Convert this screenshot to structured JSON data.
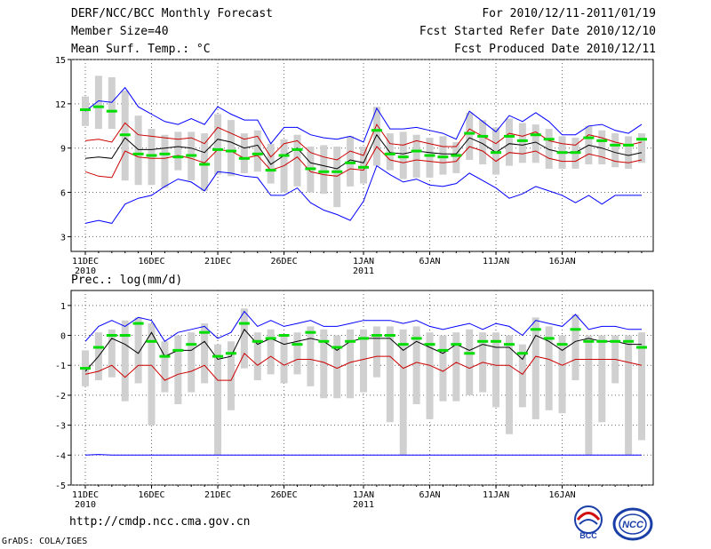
{
  "header": {
    "title": "DERF/NCC/BCC Monthly Forecast",
    "member_size": "Member Size=40",
    "variable": "Mean Surf. Temp.: °C",
    "period": "For 2010/12/11-2011/01/19",
    "started": "Fcst Started Refer Date 2010/12/10",
    "produced": "Fcst Produced Date 2010/12/11"
  },
  "footer": {
    "url": "http://cmdp.ncc.cma.gov.cn",
    "credit": "GrADS: COLA/IGES",
    "logo_bcc": "BCC",
    "logo_ncc": "NCC"
  },
  "colors": {
    "ensemble": "#000000",
    "upper": "#0000ff",
    "lower": "#cc0000",
    "member": "#00dd00",
    "box": "#d0d0d0"
  },
  "chart_data": [
    {
      "type": "line",
      "title": "Mean Surf. Temp.: °C",
      "x_tick_labels": [
        "11DEC\n2010",
        "16DEC",
        "21DEC",
        "26DEC",
        "1JAN\n2011",
        "6JAN",
        "11JAN",
        "16JAN"
      ],
      "x_tick_days": [
        0,
        5,
        10,
        15,
        21,
        26,
        31,
        36
      ],
      "ylim": [
        2,
        15
      ],
      "y_ticks": [
        3,
        6,
        9,
        12,
        15
      ],
      "series": [
        {
          "name": "ensemble_mean",
          "values": [
            8.3,
            8.4,
            8.3,
            9.7,
            8.9,
            8.9,
            9.0,
            9.1,
            9.0,
            8.7,
            9.6,
            9.4,
            9.0,
            9.2,
            7.9,
            8.5,
            9.0,
            8.0,
            7.8,
            7.6,
            8.2,
            8.0,
            9.9,
            8.7,
            8.6,
            8.8,
            8.7,
            8.6,
            8.6,
            9.7,
            9.3,
            8.7,
            9.3,
            9.2,
            9.4,
            8.9,
            8.7,
            8.7,
            9.2,
            9.0,
            8.7,
            8.5,
            8.7
          ]
        },
        {
          "name": "upper_bound",
          "values": [
            3.9,
            4.1,
            3.9,
            5.2,
            5.6,
            5.8,
            6.4,
            6.9,
            6.7,
            6.1,
            7.4,
            7.3,
            7.1,
            7.0,
            5.8,
            5.8,
            6.3,
            5.3,
            4.8,
            4.5,
            4.1,
            5.4,
            7.8,
            7.2,
            6.7,
            6.9,
            6.5,
            6.4,
            6.6,
            7.3,
            6.8,
            6.3,
            5.6,
            5.9,
            6.4,
            6.1,
            5.8,
            5.3,
            5.8,
            5.2,
            5.8,
            5.8,
            5.8
          ]
        },
        {
          "name": "lower_bound",
          "values": [
            11.5,
            12.2,
            12.1,
            13.1,
            11.8,
            11.3,
            10.8,
            10.6,
            11.0,
            10.6,
            11.8,
            11.3,
            10.9,
            10.9,
            9.3,
            10.4,
            10.4,
            9.9,
            9.7,
            9.6,
            9.8,
            9.4,
            11.7,
            10.3,
            10.3,
            10.4,
            10.2,
            10.0,
            9.6,
            11.5,
            10.8,
            10.1,
            11.2,
            10.8,
            11.4,
            10.8,
            9.9,
            9.9,
            10.5,
            10.6,
            10.2,
            10.0,
            10.6
          ]
        },
        {
          "name": "ensemble_alt",
          "values": [
            9.5,
            9.6,
            9.4,
            10.7,
            9.9,
            9.8,
            9.7,
            9.6,
            9.7,
            9.3,
            10.4,
            10.0,
            9.6,
            9.8,
            8.4,
            9.3,
            9.5,
            8.7,
            8.4,
            8.2,
            8.8,
            8.5,
            10.6,
            9.3,
            9.2,
            9.5,
            9.3,
            9.1,
            9.1,
            10.3,
            9.8,
            9.3,
            10.0,
            9.8,
            10.1,
            9.5,
            9.3,
            9.2,
            9.9,
            9.7,
            9.4,
            9.2,
            9.4
          ]
        },
        {
          "name": "ensemble_low",
          "values": [
            7.4,
            7.1,
            7.0,
            8.8,
            8.4,
            8.3,
            8.3,
            8.5,
            8.3,
            8.0,
            8.9,
            8.8,
            8.3,
            8.5,
            7.5,
            7.8,
            8.4,
            7.4,
            7.2,
            7.1,
            7.6,
            7.5,
            9.1,
            8.2,
            8.0,
            8.2,
            8.1,
            8.0,
            8.1,
            9.1,
            8.8,
            8.1,
            8.7,
            8.6,
            8.8,
            8.3,
            8.1,
            8.1,
            8.6,
            8.4,
            8.1,
            8.0,
            8.2
          ]
        }
      ],
      "boxes": [
        [
          10.5,
          12.5
        ],
        [
          10.3,
          13.9
        ],
        [
          10.3,
          13.8
        ],
        [
          6.8,
          12.9
        ],
        [
          6.5,
          11.2
        ],
        [
          6.5,
          10.3
        ],
        [
          6.3,
          9.9
        ],
        [
          7.5,
          10.1
        ],
        [
          6.8,
          10.1
        ],
        [
          6.1,
          10.0
        ],
        [
          7.2,
          11.3
        ],
        [
          7.1,
          10.9
        ],
        [
          7.3,
          10.0
        ],
        [
          7.4,
          10.2
        ],
        [
          6.6,
          9.3
        ],
        [
          6.0,
          9.6
        ],
        [
          6.4,
          9.9
        ],
        [
          6.0,
          9.1
        ],
        [
          5.9,
          9.2
        ],
        [
          5.0,
          9.1
        ],
        [
          6.4,
          9.8
        ],
        [
          6.6,
          9.1
        ],
        [
          7.8,
          11.8
        ],
        [
          7.5,
          10.0
        ],
        [
          6.9,
          10.1
        ],
        [
          7.0,
          9.9
        ],
        [
          7.0,
          9.7
        ],
        [
          7.2,
          9.8
        ],
        [
          7.3,
          9.4
        ],
        [
          8.2,
          11.4
        ],
        [
          7.9,
          10.9
        ],
        [
          7.2,
          10.4
        ],
        [
          7.8,
          11.0
        ],
        [
          8.0,
          10.7
        ],
        [
          8.0,
          10.6
        ],
        [
          7.6,
          10.3
        ],
        [
          7.6,
          9.8
        ],
        [
          7.6,
          9.7
        ],
        [
          7.9,
          10.5
        ],
        [
          7.9,
          10.2
        ],
        [
          7.7,
          10.0
        ],
        [
          7.6,
          9.8
        ],
        [
          8.0,
          10.0
        ]
      ],
      "members": [
        11.6,
        11.8,
        11.5,
        9.9,
        8.6,
        8.5,
        8.6,
        8.4,
        8.5,
        7.9,
        8.9,
        8.8,
        8.3,
        8.6,
        7.5,
        8.5,
        8.9,
        7.6,
        7.4,
        7.4,
        8.0,
        7.7,
        10.2,
        8.6,
        8.4,
        8.8,
        8.5,
        8.4,
        8.5,
        10.0,
        9.8,
        8.7,
        9.8,
        9.5,
        9.9,
        9.6,
        8.7,
        8.7,
        9.7,
        9.5,
        9.2,
        9.2,
        9.6
      ]
    },
    {
      "type": "line",
      "title": "Prec.: log(mm/d)",
      "x_tick_labels": [
        "11DEC\n2010",
        "16DEC",
        "21DEC",
        "26DEC",
        "1JAN\n2011",
        "6JAN",
        "11JAN",
        "16JAN"
      ],
      "x_tick_days": [
        0,
        5,
        10,
        15,
        21,
        26,
        31,
        36
      ],
      "ylim": [
        -5,
        1.5
      ],
      "y_ticks": [
        -5,
        -4,
        -3,
        -2,
        -1,
        0,
        1
      ],
      "series": [
        {
          "name": "ensemble_mean",
          "values": [
            -1.2,
            -0.7,
            -0.1,
            -0.3,
            -0.6,
            0.1,
            -0.7,
            -0.5,
            -0.5,
            -0.2,
            -0.8,
            -0.7,
            0.2,
            -0.3,
            -0.1,
            -0.3,
            -0.2,
            -0.1,
            -0.2,
            -0.5,
            -0.2,
            -0.1,
            -0.1,
            -0.1,
            -0.5,
            -0.2,
            -0.4,
            -0.6,
            -0.3,
            -0.5,
            -0.3,
            -0.4,
            -0.4,
            -0.8,
            0.0,
            -0.2,
            -0.5,
            -0.2,
            -0.1,
            -0.2,
            -0.2,
            -0.3,
            -0.3
          ]
        },
        {
          "name": "upper_bound",
          "values": [
            -0.2,
            0.3,
            0.5,
            0.3,
            0.6,
            0.5,
            -0.2,
            0.1,
            0.2,
            0.3,
            -0.1,
            0.1,
            0.8,
            0.3,
            0.5,
            0.3,
            0.4,
            0.5,
            0.3,
            0.3,
            0.4,
            0.5,
            0.5,
            0.5,
            0.4,
            0.5,
            0.3,
            0.2,
            0.3,
            0.4,
            0.2,
            0.4,
            0.3,
            0.0,
            0.5,
            0.4,
            0.3,
            0.7,
            0.2,
            0.3,
            0.3,
            0.2,
            0.2
          ]
        },
        {
          "name": "lower_bound",
          "values": [
            -1.3,
            -1.2,
            -1.0,
            -1.4,
            -1.0,
            -1.0,
            -1.5,
            -1.3,
            -1.2,
            -1.0,
            -1.5,
            -1.5,
            -0.6,
            -1.0,
            -0.7,
            -1.0,
            -0.8,
            -0.8,
            -0.9,
            -1.1,
            -0.9,
            -0.8,
            -0.7,
            -0.7,
            -1.1,
            -0.9,
            -1.0,
            -1.2,
            -0.9,
            -1.1,
            -0.9,
            -1.0,
            -1.0,
            -1.3,
            -0.7,
            -0.8,
            -1.0,
            -0.8,
            -0.8,
            -0.8,
            -0.8,
            -0.9,
            -1.0
          ]
        },
        {
          "name": "far_lower",
          "values": [
            -4.0,
            -3.98,
            -4.0,
            -4.0,
            -4.0,
            -4.0,
            -4.0,
            -4.0,
            -4.0,
            -4.0,
            -4.0,
            -4.0,
            -4.0,
            -4.0,
            -4.0,
            -4.0,
            -4.0,
            -4.0,
            -4.0,
            -4.0,
            -4.0,
            -4.0,
            -4.0,
            -4.0,
            -4.0,
            -4.0,
            -4.0,
            -4.0,
            -4.0,
            -4.0,
            -4.0,
            -4.0,
            -4.0,
            -4.0,
            -4.0,
            -4.0,
            -4.0,
            -4.0,
            -4.0,
            -4.0,
            -4.0,
            -4.0,
            -4.0
          ]
        }
      ],
      "boxes": [
        [
          -1.7,
          -0.5
        ],
        [
          -1.5,
          0.1
        ],
        [
          -1.4,
          0.2
        ],
        [
          -2.2,
          0.5
        ],
        [
          -1.6,
          0.6
        ],
        [
          -3.0,
          0.4
        ],
        [
          -1.9,
          -0.2
        ],
        [
          -2.3,
          0.0
        ],
        [
          -1.9,
          0.1
        ],
        [
          -1.6,
          0.4
        ],
        [
          -4.0,
          -0.3
        ],
        [
          -2.5,
          -0.2
        ],
        [
          -1.1,
          0.9
        ],
        [
          -1.5,
          0.1
        ],
        [
          -1.3,
          0.2
        ],
        [
          -1.6,
          0.0
        ],
        [
          -1.3,
          0.1
        ],
        [
          -1.7,
          0.3
        ],
        [
          -2.1,
          0.2
        ],
        [
          -2.1,
          0.0
        ],
        [
          -2.1,
          0.2
        ],
        [
          -1.9,
          0.2
        ],
        [
          -1.4,
          0.3
        ],
        [
          -2.9,
          0.3
        ],
        [
          -4.0,
          0.2
        ],
        [
          -2.3,
          0.3
        ],
        [
          -2.8,
          0.1
        ],
        [
          -2.2,
          0.0
        ],
        [
          -2.2,
          0.1
        ],
        [
          -2.0,
          0.2
        ],
        [
          -1.9,
          0.1
        ],
        [
          -2.4,
          0.1
        ],
        [
          -3.3,
          0.0
        ],
        [
          -2.4,
          -0.3
        ],
        [
          -2.8,
          0.6
        ],
        [
          -2.5,
          0.3
        ],
        [
          -2.6,
          0.0
        ],
        [
          -1.5,
          0.7
        ],
        [
          -4.0,
          0.0
        ],
        [
          -2.9,
          0.0
        ],
        [
          -1.6,
          0.0
        ],
        [
          -4.0,
          0.0
        ],
        [
          -3.5,
          0.1
        ]
      ],
      "members": [
        -1.1,
        -0.4,
        0.0,
        0.0,
        0.4,
        -0.2,
        -0.7,
        -0.5,
        -0.3,
        0.1,
        -0.7,
        -0.6,
        0.4,
        -0.2,
        -0.1,
        0.0,
        -0.3,
        0.1,
        -0.2,
        -0.4,
        -0.2,
        -0.1,
        0.0,
        0.0,
        -0.3,
        -0.1,
        -0.3,
        -0.5,
        -0.3,
        -0.6,
        -0.2,
        -0.2,
        -0.3,
        -0.6,
        0.2,
        -0.1,
        -0.3,
        0.2,
        -0.2,
        -0.2,
        -0.2,
        -0.2,
        -0.4
      ]
    }
  ]
}
